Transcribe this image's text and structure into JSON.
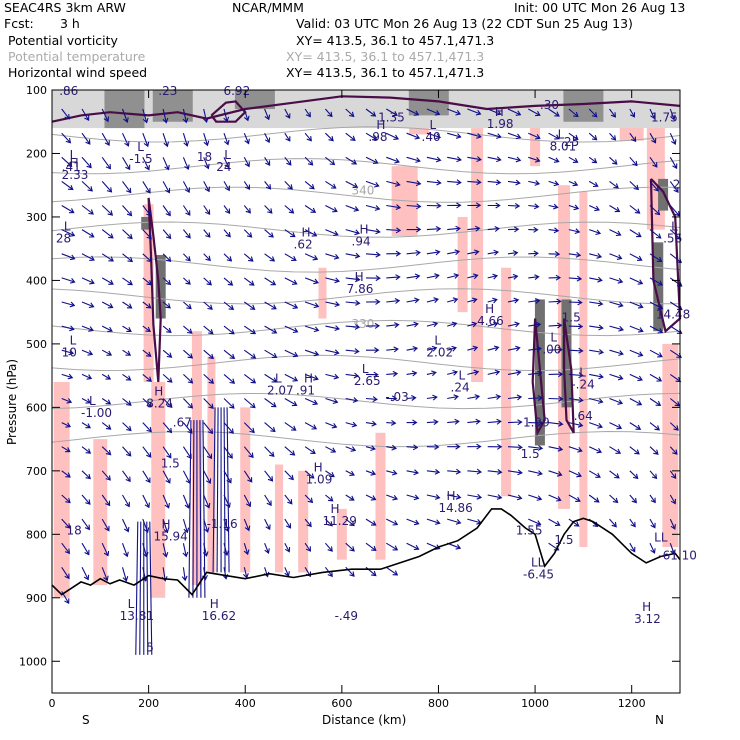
{
  "header": {
    "model": "SEAC4RS   3km ARW",
    "org": "NCAR/MMM",
    "init": "Init: 00 UTC Mon 26 Aug 13",
    "fcst_label": "Fcst:",
    "fcst_value": "3 h",
    "valid": "Valid: 03 UTC Mon 26 Aug 13 (22 CDT Sun 25 Aug 13)"
  },
  "fields": [
    {
      "name": "Potential vorticity",
      "xy": "XY=  413.5,  36.1 to 457.1,471.3",
      "color": "#000000"
    },
    {
      "name": "Potential temperature",
      "xy": "XY=  413.5,  36.1 to 457.1,471.3",
      "color": "#aaaaaa"
    },
    {
      "name": "Horizontal wind speed",
      "xy": "XY=  413.5,  36.1 to 457.1,471.3",
      "color": "#000000"
    }
  ],
  "chart_data": {
    "type": "cross-section",
    "xlabel": "Distance (km)",
    "ylabel": "Pressure (hPa)",
    "xlim": [
      0,
      1300
    ],
    "ylim": [
      1050,
      100
    ],
    "xticks": [
      0,
      200,
      400,
      600,
      800,
      1000,
      1200
    ],
    "yticks": [
      100,
      200,
      300,
      400,
      500,
      600,
      700,
      800,
      900,
      1000
    ],
    "left_end_label": "S",
    "right_end_label": "N",
    "theta_labels": [
      {
        "text": "340",
        "x": 620,
        "p": 265
      },
      {
        "text": "330",
        "x": 620,
        "p": 475
      }
    ],
    "highs_lows": [
      {
        "sym": "L",
        "x": 20,
        "p": 228,
        "val": ".41"
      },
      {
        "sym": "H",
        "x": 20,
        "p": 240,
        "val": "2.33"
      },
      {
        "sym": "L",
        "x": 160,
        "p": 215,
        "val": "-1.5"
      },
      {
        "sym": "",
        "x": 300,
        "p": 212,
        "val": "18"
      },
      {
        "sym": "L",
        "x": 340,
        "p": 228,
        "val": "24"
      },
      {
        "sym": "L",
        "x": 8,
        "p": 340,
        "val": "28"
      },
      {
        "sym": "H",
        "x": 500,
        "p": 350,
        "val": ".62"
      },
      {
        "sym": "H",
        "x": 620,
        "p": 345,
        "val": ".94"
      },
      {
        "sym": "H",
        "x": 610,
        "p": 420,
        "val": "7.86"
      },
      {
        "sym": "H",
        "x": 655,
        "p": 180,
        "val": ".98"
      },
      {
        "sym": "L",
        "x": 765,
        "p": 180,
        "val": ".40"
      },
      {
        "sym": "H",
        "x": 900,
        "p": 160,
        "val": "1.98"
      },
      {
        "sym": "L",
        "x": 1030,
        "p": 195,
        "val": "8.01"
      },
      {
        "sym": "",
        "x": 1060,
        "p": 188,
        "val": "25"
      },
      {
        "sym": "",
        "x": 1285,
        "p": 255,
        "val": "2"
      },
      {
        "sym": "L",
        "x": 1265,
        "p": 340,
        "val": ".56"
      },
      {
        "sym": "",
        "x": 1250,
        "p": 460,
        "val": "14.48"
      },
      {
        "sym": "",
        "x": 1055,
        "p": 465,
        "val": "1.5"
      },
      {
        "sym": "H",
        "x": 880,
        "p": 470,
        "val": "4.66"
      },
      {
        "sym": "L",
        "x": 775,
        "p": 520,
        "val": "2.02"
      },
      {
        "sym": "L",
        "x": 825,
        "p": 575,
        "val": ".24"
      },
      {
        "sym": "L",
        "x": 1015,
        "p": 515,
        "val": ".00"
      },
      {
        "sym": "L",
        "x": 1075,
        "p": 570,
        "val": "-.24"
      },
      {
        "sym": "",
        "x": 1080,
        "p": 620,
        "val": ".64"
      },
      {
        "sym": "L",
        "x": 445,
        "p": 580,
        "val": "2.07"
      },
      {
        "sym": "H",
        "x": 505,
        "p": 580,
        "val": ".91"
      },
      {
        "sym": "L",
        "x": 625,
        "p": 565,
        "val": "2.65"
      },
      {
        "sym": "",
        "x": 690,
        "p": 590,
        "val": "-.03"
      },
      {
        "sym": "L",
        "x": 20,
        "p": 520,
        "val": "10"
      },
      {
        "sym": "L",
        "x": 60,
        "p": 615,
        "val": "-1.00"
      },
      {
        "sym": "H",
        "x": 195,
        "p": 600,
        "val": "8.24"
      },
      {
        "sym": "",
        "x": 250,
        "p": 630,
        "val": ".67"
      },
      {
        "sym": "",
        "x": 975,
        "p": 630,
        "val": "1.29"
      },
      {
        "sym": "",
        "x": 970,
        "p": 680,
        "val": "1.5"
      },
      {
        "sym": "",
        "x": 225,
        "p": 695,
        "val": "1.5"
      },
      {
        "sym": "H",
        "x": 525,
        "p": 720,
        "val": "1.09"
      },
      {
        "sym": "H",
        "x": 560,
        "p": 785,
        "val": "11.29"
      },
      {
        "sym": "H",
        "x": 800,
        "p": 765,
        "val": "14.86"
      },
      {
        "sym": "H",
        "x": 210,
        "p": 810,
        "val": "15.94"
      },
      {
        "sym": "",
        "x": 320,
        "p": 790,
        "val": "-1.16"
      },
      {
        "sym": "",
        "x": 30,
        "p": 800,
        "val": "18"
      },
      {
        "sym": "",
        "x": 960,
        "p": 800,
        "val": "1.55"
      },
      {
        "sym": "",
        "x": 1040,
        "p": 815,
        "val": "1.5"
      },
      {
        "sym": "",
        "x": 1255,
        "p": 840,
        "val": "-61.10"
      },
      {
        "sym": "LL",
        "x": 1230,
        "p": 830,
        "val": ""
      },
      {
        "sym": "LL",
        "x": 975,
        "p": 870,
        "val": "-6.45"
      },
      {
        "sym": "L",
        "x": 140,
        "p": 935,
        "val": "13.81"
      },
      {
        "sym": "H",
        "x": 310,
        "p": 935,
        "val": "16.62"
      },
      {
        "sym": "",
        "x": 585,
        "p": 935,
        "val": "-.49"
      },
      {
        "sym": "H",
        "x": 1205,
        "p": 940,
        "val": "3.12"
      },
      {
        "sym": "",
        "x": 195,
        "p": 985,
        "val": "5"
      }
    ],
    "extra_labels": [
      {
        "text": ".86",
        "x": 15,
        "p": 108
      },
      {
        "text": ".23",
        "x": 220,
        "p": 108
      },
      {
        "text": "6.92",
        "x": 355,
        "p": 108
      },
      {
        "text": "1.35",
        "x": 675,
        "p": 150
      },
      {
        "text": ".30",
        "x": 1010,
        "p": 130
      },
      {
        "text": "1.75",
        "x": 1240,
        "p": 150
      }
    ]
  }
}
